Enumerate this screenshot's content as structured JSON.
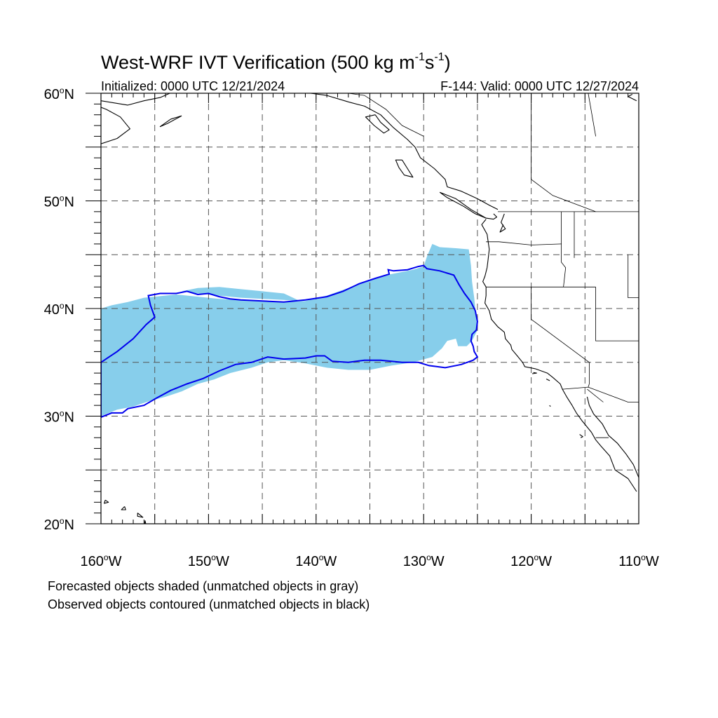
{
  "figure": {
    "title_main": "West-WRF IVT Verification (500 kg m",
    "title_exp1": "-1",
    "title_mid": "s",
    "title_exp2": "-1",
    "title_end": ")",
    "init_label": "Initialized: 0000 UTC 12/21/2024",
    "valid_label": "F-144: Valid: 0000 UTC 12/27/2024"
  },
  "legend_notes": {
    "forecast": "Forecasted objects shaded (unmatched objects in gray)",
    "observed": "Observed objects contoured (unmatched objects in black)"
  },
  "map": {
    "lon_range": [
      -160,
      -110
    ],
    "lat_range": [
      20,
      60
    ],
    "lon_ticks": [
      {
        "value": -160,
        "num": "160",
        "hemi": "W"
      },
      {
        "value": -150,
        "num": "150",
        "hemi": "W"
      },
      {
        "value": -140,
        "num": "140",
        "hemi": "W"
      },
      {
        "value": -130,
        "num": "130",
        "hemi": "W"
      },
      {
        "value": -120,
        "num": "120",
        "hemi": "W"
      },
      {
        "value": -110,
        "num": "110",
        "hemi": "W"
      }
    ],
    "lat_ticks": [
      {
        "value": 60,
        "num": "60",
        "hemi": "N"
      },
      {
        "value": 50,
        "num": "50",
        "hemi": "N"
      },
      {
        "value": 40,
        "num": "40",
        "hemi": "N"
      },
      {
        "value": 30,
        "num": "30",
        "hemi": "N"
      },
      {
        "value": 20,
        "num": "20",
        "hemi": "N"
      }
    ],
    "grid_lons": [
      -155,
      -150,
      -145,
      -140,
      -135,
      -130,
      -125,
      -120,
      -115
    ],
    "grid_lats": [
      55,
      50,
      45,
      40,
      35,
      30,
      25
    ],
    "forecast_color": "#87ceeb",
    "observed_color": "#0000ee",
    "coast_color": "#000000",
    "forecast_object": [
      [
        -160,
        40.0
      ],
      [
        -159,
        40.3
      ],
      [
        -157.5,
        40.6
      ],
      [
        -156,
        41.0
      ],
      [
        -155,
        41.1
      ],
      [
        -153,
        41.3
      ],
      [
        -151,
        41.1
      ],
      [
        -149,
        40.9
      ],
      [
        -147,
        40.8
      ],
      [
        -145,
        40.7
      ],
      [
        -143,
        40.6
      ],
      [
        -141,
        40.7
      ],
      [
        -139,
        41.2
      ],
      [
        -137,
        41.9
      ],
      [
        -135,
        42.6
      ],
      [
        -133,
        43.2
      ],
      [
        -131,
        43.6
      ],
      [
        -130,
        43.9
      ],
      [
        -129.7,
        44.8
      ],
      [
        -129.2,
        46.0
      ],
      [
        -128.5,
        45.7
      ],
      [
        -127,
        45.6
      ],
      [
        -125.8,
        45.5
      ],
      [
        -125.6,
        44.0
      ],
      [
        -125.5,
        42.5
      ],
      [
        -125.3,
        41.0
      ],
      [
        -125.1,
        39.0
      ],
      [
        -125.0,
        38.0
      ],
      [
        -125.5,
        37.0
      ],
      [
        -126.0,
        36.5
      ],
      [
        -126.8,
        36.5
      ],
      [
        -127.0,
        37.2
      ],
      [
        -127.8,
        37.0
      ],
      [
        -128.3,
        36.3
      ],
      [
        -129.2,
        35.5
      ],
      [
        -131,
        35.0
      ],
      [
        -133,
        34.7
      ],
      [
        -135,
        34.3
      ],
      [
        -137,
        34.3
      ],
      [
        -139,
        34.5
      ],
      [
        -141,
        34.9
      ],
      [
        -143,
        35.2
      ],
      [
        -144.5,
        35.0
      ],
      [
        -146,
        34.5
      ],
      [
        -148,
        34.0
      ],
      [
        -149.5,
        33.4
      ],
      [
        -151,
        33.0
      ],
      [
        -152.5,
        32.3
      ],
      [
        -154,
        31.8
      ],
      [
        -155.5,
        31.4
      ],
      [
        -157,
        30.9
      ],
      [
        -158.5,
        30.6
      ],
      [
        -160,
        30.0
      ]
    ],
    "forecast_hole": [
      [
        -141.5,
        40.7
      ],
      [
        -143,
        40.8
      ],
      [
        -145,
        40.9
      ],
      [
        -147,
        41.0
      ],
      [
        -149,
        41.2
      ],
      [
        -151,
        41.4
      ],
      [
        -152.5,
        41.6
      ],
      [
        -151,
        41.9
      ],
      [
        -149,
        42.0
      ],
      [
        -147,
        41.8
      ],
      [
        -145,
        41.6
      ],
      [
        -143,
        41.4
      ]
    ],
    "observed_object": [
      [
        -160,
        35.0
      ],
      [
        -158.5,
        36.0
      ],
      [
        -157,
        37.2
      ],
      [
        -155.8,
        38.5
      ],
      [
        -155,
        39.2
      ],
      [
        -155.4,
        40.3
      ],
      [
        -155.6,
        41.2
      ],
      [
        -154.5,
        41.4
      ],
      [
        -153,
        41.4
      ],
      [
        -152,
        41.6
      ],
      [
        -151,
        41.3
      ],
      [
        -150,
        41.4
      ],
      [
        -149,
        41.1
      ],
      [
        -148,
        40.9
      ],
      [
        -147,
        40.8
      ],
      [
        -145,
        40.7
      ],
      [
        -143,
        40.6
      ],
      [
        -141,
        40.8
      ],
      [
        -139,
        41.1
      ],
      [
        -137.5,
        41.6
      ],
      [
        -136,
        42.3
      ],
      [
        -134.5,
        42.8
      ],
      [
        -133.2,
        43.2
      ],
      [
        -133.3,
        43.6
      ],
      [
        -132.8,
        43.5
      ],
      [
        -131.5,
        43.6
      ],
      [
        -130.5,
        43.9
      ],
      [
        -130.0,
        44.0
      ],
      [
        -129.7,
        43.7
      ],
      [
        -128.5,
        43.5
      ],
      [
        -127.2,
        43.1
      ],
      [
        -126.7,
        42.2
      ],
      [
        -126.2,
        41.4
      ],
      [
        -125.6,
        40.6
      ],
      [
        -125.2,
        39.8
      ],
      [
        -125.0,
        38.8
      ],
      [
        -125.1,
        38.0
      ],
      [
        -125.5,
        37.6
      ],
      [
        -125.6,
        37.0
      ],
      [
        -125.4,
        36.5
      ],
      [
        -125.3,
        36.0
      ],
      [
        -125.0,
        35.5
      ],
      [
        -125.4,
        35.2
      ],
      [
        -126.5,
        34.8
      ],
      [
        -128,
        34.5
      ],
      [
        -129.5,
        34.7
      ],
      [
        -130.5,
        35.0
      ],
      [
        -132,
        35.0
      ],
      [
        -134,
        35.2
      ],
      [
        -135.5,
        35.2
      ],
      [
        -137,
        35.0
      ],
      [
        -138.5,
        35.1
      ],
      [
        -139.2,
        35.6
      ],
      [
        -140,
        35.6
      ],
      [
        -141,
        35.4
      ],
      [
        -143,
        35.3
      ],
      [
        -144.5,
        35.5
      ],
      [
        -146,
        35.0
      ],
      [
        -147.5,
        34.8
      ],
      [
        -149,
        34.2
      ],
      [
        -150.5,
        33.5
      ],
      [
        -152,
        33.0
      ],
      [
        -153.5,
        32.4
      ],
      [
        -154.8,
        31.7
      ],
      [
        -156,
        31.0
      ],
      [
        -157.5,
        30.7
      ],
      [
        -158,
        30.3
      ],
      [
        -159,
        30.3
      ],
      [
        -160,
        29.9
      ]
    ],
    "coastlines": [
      [
        [
          -124.2,
          48.3
        ],
        [
          -124.6,
          47.8
        ],
        [
          -124.1,
          46.9
        ],
        [
          -124.0,
          46.2
        ],
        [
          -123.9,
          45.5
        ],
        [
          -124.0,
          44.6
        ],
        [
          -124.1,
          43.8
        ],
        [
          -124.3,
          43.0
        ],
        [
          -124.5,
          42.5
        ],
        [
          -124.2,
          42.0
        ],
        [
          -124.2,
          41.2
        ],
        [
          -124.3,
          40.5
        ],
        [
          -123.9,
          39.8
        ],
        [
          -123.7,
          39.0
        ],
        [
          -123.1,
          38.3
        ],
        [
          -122.5,
          37.8
        ],
        [
          -122.4,
          37.2
        ],
        [
          -121.9,
          36.6
        ],
        [
          -121.8,
          36.2
        ],
        [
          -121.3,
          35.6
        ],
        [
          -120.8,
          35.0
        ],
        [
          -120.6,
          34.6
        ],
        [
          -119.6,
          34.4
        ],
        [
          -118.5,
          34.0
        ],
        [
          -118.0,
          33.6
        ],
        [
          -117.3,
          33.0
        ],
        [
          -117.1,
          32.5
        ],
        [
          -116.7,
          31.8
        ],
        [
          -116.2,
          31.0
        ],
        [
          -115.8,
          30.3
        ],
        [
          -115.3,
          29.6
        ],
        [
          -114.4,
          28.5
        ],
        [
          -114.0,
          27.8
        ],
        [
          -113.5,
          27.2
        ],
        [
          -112.7,
          26.3
        ],
        [
          -112.2,
          25.0
        ],
        [
          -111.0,
          24.2
        ],
        [
          -110.2,
          23.0
        ]
      ],
      [
        [
          -114.8,
          31.8
        ],
        [
          -114.6,
          31.0
        ],
        [
          -114.2,
          30.2
        ],
        [
          -113.4,
          29.3
        ],
        [
          -112.8,
          28.2
        ],
        [
          -112.0,
          27.5
        ],
        [
          -111.2,
          26.5
        ],
        [
          -110.5,
          25.5
        ],
        [
          -110.0,
          24.3
        ]
      ],
      [
        [
          -122.5,
          48.8
        ],
        [
          -122.8,
          48.0
        ],
        [
          -122.4,
          47.4
        ],
        [
          -122.9,
          47.1
        ],
        [
          -122.6,
          47.8
        ]
      ],
      [
        [
          -124.2,
          48.4
        ],
        [
          -123.5,
          48.3
        ],
        [
          -123.2,
          48.5
        ],
        [
          -123.5,
          48.8
        ]
      ],
      [
        [
          -123.1,
          49.2
        ],
        [
          -123.9,
          49.6
        ],
        [
          -125.0,
          50.2
        ],
        [
          -126.5,
          50.9
        ],
        [
          -127.8,
          51.3
        ],
        [
          -128.0,
          52.0
        ],
        [
          -129.0,
          53.0
        ],
        [
          -130.3,
          54.0
        ],
        [
          -130.8,
          55.0
        ],
        [
          -131.5,
          55.7
        ],
        [
          -132.8,
          56.8
        ],
        [
          -134.0,
          58.0
        ],
        [
          -135.5,
          58.8
        ],
        [
          -137.0,
          59.2
        ],
        [
          -139.0,
          59.8
        ],
        [
          -140.5,
          60.0
        ]
      ],
      [
        [
          -128.5,
          50.8
        ],
        [
          -127.0,
          50.2
        ],
        [
          -125.6,
          49.2
        ],
        [
          -124.2,
          48.4
        ],
        [
          -125.2,
          48.8
        ],
        [
          -126.3,
          49.5
        ],
        [
          -127.8,
          50.3
        ],
        [
          -128.5,
          50.8
        ]
      ],
      [
        [
          -132.0,
          53.8
        ],
        [
          -131.5,
          53.0
        ],
        [
          -131.0,
          52.2
        ],
        [
          -131.8,
          52.4
        ],
        [
          -132.3,
          53.1
        ],
        [
          -132.6,
          53.8
        ],
        [
          -132.0,
          53.8
        ]
      ],
      [
        [
          -134.5,
          58.0
        ],
        [
          -134.0,
          57.3
        ],
        [
          -133.2,
          56.6
        ],
        [
          -133.7,
          56.3
        ],
        [
          -134.6,
          57.0
        ],
        [
          -135.4,
          57.8
        ],
        [
          -134.5,
          58.0
        ]
      ],
      [
        [
          -152.5,
          57.9
        ],
        [
          -153.8,
          57.2
        ],
        [
          -154.5,
          56.9
        ],
        [
          -153.5,
          57.6
        ],
        [
          -152.5,
          57.9
        ]
      ],
      [
        [
          -160,
          55.3
        ],
        [
          -158.5,
          55.8
        ],
        [
          -157.3,
          56.7
        ],
        [
          -158.2,
          57.8
        ],
        [
          -159.5,
          58.5
        ],
        [
          -160,
          58.7
        ]
      ],
      [
        [
          -160,
          59.3
        ],
        [
          -157.5,
          58.9
        ],
        [
          -156.0,
          59.3
        ],
        [
          -154.5,
          59.6
        ],
        [
          -153.6,
          60.0
        ]
      ],
      [
        [
          -155.9,
          20.3
        ],
        [
          -156.0,
          19.5
        ],
        [
          -155.1,
          19.3
        ],
        [
          -155.6,
          18.9
        ],
        [
          -155.9,
          20.3
        ]
      ],
      [
        [
          -156.6,
          21.0
        ],
        [
          -156.1,
          20.6
        ],
        [
          -156.6,
          20.7
        ],
        [
          -156.6,
          21.0
        ]
      ],
      [
        [
          -157.8,
          21.6
        ],
        [
          -158.1,
          21.3
        ],
        [
          -157.7,
          21.3
        ],
        [
          -157.8,
          21.6
        ]
      ],
      [
        [
          -159.6,
          22.2
        ],
        [
          -159.3,
          22.0
        ],
        [
          -159.7,
          21.9
        ],
        [
          -159.6,
          22.2
        ]
      ],
      [
        [
          -110.2,
          59.3
        ],
        [
          -111.0,
          59.7
        ],
        [
          -110.6,
          59.9
        ]
      ],
      [
        [
          -118.5,
          33.4
        ],
        [
          -118.3,
          33.3
        ],
        [
          -118.6,
          33.45
        ]
      ],
      [
        [
          -119.8,
          34.05
        ],
        [
          -119.5,
          34.0
        ],
        [
          -119.9,
          33.95
        ]
      ],
      [
        [
          -118.3,
          31.0
        ],
        [
          -118.2,
          30.9
        ]
      ],
      [
        [
          -115.5,
          28.3
        ],
        [
          -115.2,
          28.1
        ],
        [
          -115.4,
          28.0
        ]
      ]
    ],
    "borders": [
      [
        [
          -123.1,
          49.0
        ],
        [
          -110,
          49.0
        ]
      ],
      [
        [
          -124.2,
          46.2
        ],
        [
          -123.0,
          46.2
        ],
        [
          -120.0,
          45.9
        ],
        [
          -117.2,
          46.0
        ]
      ],
      [
        [
          -117.2,
          49.0
        ],
        [
          -117.2,
          44.3
        ],
        [
          -116.8,
          43.8
        ],
        [
          -117.0,
          42.0
        ]
      ],
      [
        [
          -124.2,
          42.0
        ],
        [
          -114.0,
          42.0
        ]
      ],
      [
        [
          -120.0,
          42.0
        ],
        [
          -120.0,
          39.0
        ],
        [
          -114.6,
          35.0
        ],
        [
          -114.6,
          33.0
        ],
        [
          -114.7,
          32.7
        ]
      ],
      [
        [
          -114.0,
          42.0
        ],
        [
          -114.0,
          37.0
        ],
        [
          -110,
          37.0
        ]
      ],
      [
        [
          -111.0,
          45.0
        ],
        [
          -111.0,
          41.0
        ],
        [
          -110,
          41.0
        ]
      ],
      [
        [
          -116.0,
          49.0
        ],
        [
          -116.0,
          44.7
        ]
      ],
      [
        [
          -117.1,
          32.5
        ],
        [
          -114.7,
          32.7
        ],
        [
          -111.0,
          31.3
        ],
        [
          -110,
          31.3
        ]
      ],
      [
        [
          -114.8,
          32.5
        ],
        [
          -113.3,
          31.3
        ]
      ],
      [
        [
          -114.0,
          28.0
        ],
        [
          -112.8,
          28.0
        ]
      ],
      [
        [
          -120.0,
          60.0
        ],
        [
          -120.0,
          52.0
        ],
        [
          -118.0,
          50.5
        ],
        [
          -114.0,
          49.0
        ]
      ],
      [
        [
          -141.0,
          60.0
        ],
        [
          -141.0,
          59.8
        ]
      ],
      [
        [
          -130.0,
          56.0
        ],
        [
          -132.0,
          57.0
        ],
        [
          -133.5,
          58.5
        ],
        [
          -135.5,
          59.8
        ],
        [
          -137.0,
          60.0
        ]
      ],
      [
        [
          -114.7,
          60.0
        ],
        [
          -114.0,
          56.0
        ]
      ]
    ]
  }
}
